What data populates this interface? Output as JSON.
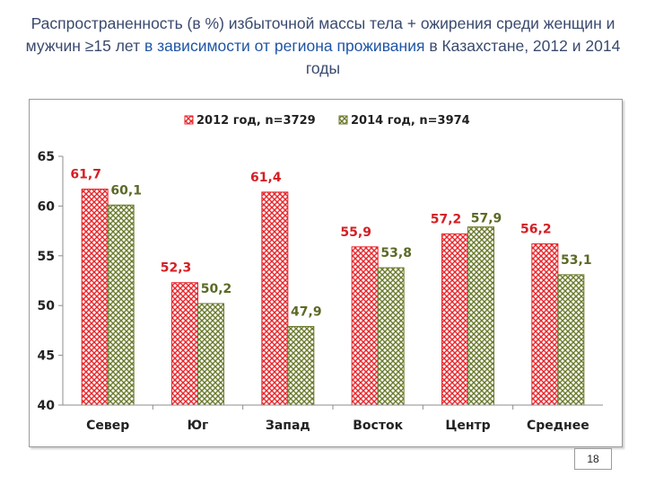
{
  "title": {
    "part1": "Распространенность (в %) избыточной массы тела + ожирения среди женщин и мужчин ≥15 лет ",
    "part2": "в зависимости от региона проживания",
    "part3": " в Казахстане, 2012 и 2014 годы"
  },
  "page_number": "18",
  "chart_data": {
    "type": "bar",
    "categories": [
      "Север",
      "Юг",
      "Запад",
      "Восток",
      "Центр",
      "Среднее"
    ],
    "series": [
      {
        "name": "2012 год, n=3729",
        "values": [
          61.7,
          52.3,
          61.4,
          55.9,
          57.2,
          56.2
        ],
        "labels": [
          "61,7",
          "52,3",
          "61,4",
          "55,9",
          "57,2",
          "56,2"
        ],
        "color": "#e8262b",
        "label_color": "#d42025"
      },
      {
        "name": "2014 год, n=3974",
        "values": [
          60.1,
          50.2,
          47.9,
          53.8,
          57.9,
          53.1
        ],
        "labels": [
          "60,1",
          "50,2",
          "47,9",
          "53,8",
          "57,9",
          "53,1"
        ],
        "color": "#6b7a2c",
        "label_color": "#5b6a26"
      }
    ],
    "ylim": [
      40,
      65
    ],
    "yticks": [
      40,
      45,
      50,
      55,
      60,
      65
    ],
    "legend_position": "top",
    "grid": false
  }
}
